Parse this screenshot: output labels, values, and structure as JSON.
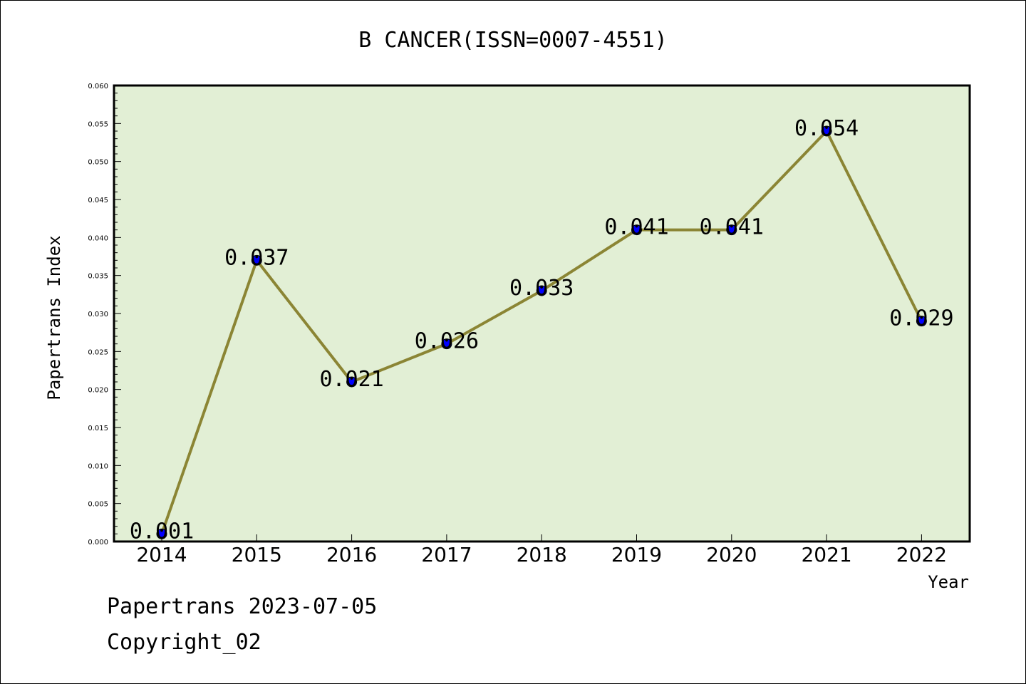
{
  "chart_data": {
    "type": "line",
    "title": "B CANCER(ISSN=0007-4551)",
    "xlabel": "Year",
    "ylabel": "Papertrans Index",
    "categories": [
      "2014",
      "2015",
      "2016",
      "2017",
      "2018",
      "2019",
      "2020",
      "2021",
      "2022"
    ],
    "values": [
      0.001,
      0.037,
      0.021,
      0.026,
      0.033,
      0.041,
      0.041,
      0.054,
      0.029
    ],
    "data_labels": [
      "0.001",
      "0.037",
      "0.021",
      "0.026",
      "0.033",
      "0.041",
      "0.041",
      "0.054",
      "0.029"
    ],
    "ylim": [
      0,
      0.06
    ],
    "yticks": [
      "0.000",
      "0.005",
      "0.010",
      "0.015",
      "0.020",
      "0.025",
      "0.030",
      "0.035",
      "0.040",
      "0.045",
      "0.050",
      "0.055",
      "0.060"
    ],
    "grid": false,
    "legend": "none",
    "colors": {
      "plot_background": "#e2efd5",
      "line": "#8b8534",
      "marker": "#0000ff"
    }
  },
  "footer": {
    "line1": "Papertrans 2023-07-05",
    "line2": "Copyright_02"
  }
}
